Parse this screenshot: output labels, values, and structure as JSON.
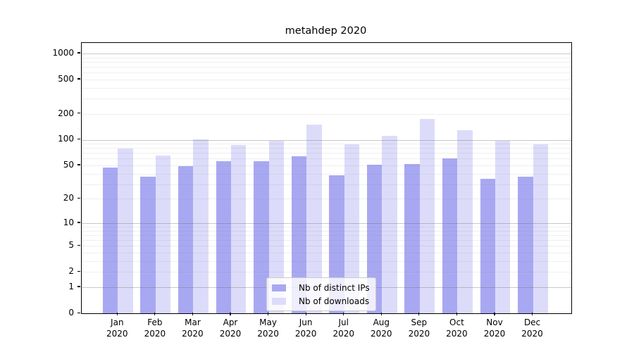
{
  "title": "metahdep 2020",
  "legend": {
    "items": [
      {
        "label": "Nb of distinct IPs",
        "color": "#a8a8f2"
      },
      {
        "label": "Nb of downloads",
        "color": "#dcdcfa"
      }
    ]
  },
  "chart_data": {
    "type": "bar",
    "title": "metahdep 2020",
    "subtitle": "",
    "xlabel": "",
    "ylabel": "",
    "y_scale": "log1p",
    "grid": true,
    "legend_position": "lower-center-inside",
    "categories": [
      "Jan 2020",
      "Feb 2020",
      "Mar 2020",
      "Apr 2020",
      "May 2020",
      "Jun 2020",
      "Jul 2020",
      "Aug 2020",
      "Sep 2020",
      "Oct 2020",
      "Nov 2020",
      "Dec 2020"
    ],
    "x_tick_months": [
      "Jan",
      "Feb",
      "Mar",
      "Apr",
      "May",
      "Jun",
      "Jul",
      "Aug",
      "Sep",
      "Oct",
      "Nov",
      "Dec"
    ],
    "x_tick_year": "2020",
    "series": [
      {
        "name": "Nb of distinct IPs",
        "color": "#a8a8f2",
        "values": [
          47,
          37,
          49,
          56,
          56,
          64,
          38,
          51,
          52,
          61,
          35,
          37
        ]
      },
      {
        "name": "Nb of downloads",
        "color": "#dcdcfa",
        "values": [
          79,
          65,
          101,
          86,
          97,
          150,
          89,
          111,
          175,
          128,
          98,
          88
        ]
      }
    ],
    "y_ticks": [
      0,
      1,
      2,
      5,
      10,
      20,
      50,
      100,
      200,
      500,
      1000
    ],
    "ylim": [
      0,
      1100
    ],
    "colors": {
      "axis": "#000000",
      "grid_major": "#c3c3c3",
      "grid_minor": "#ececec"
    }
  }
}
